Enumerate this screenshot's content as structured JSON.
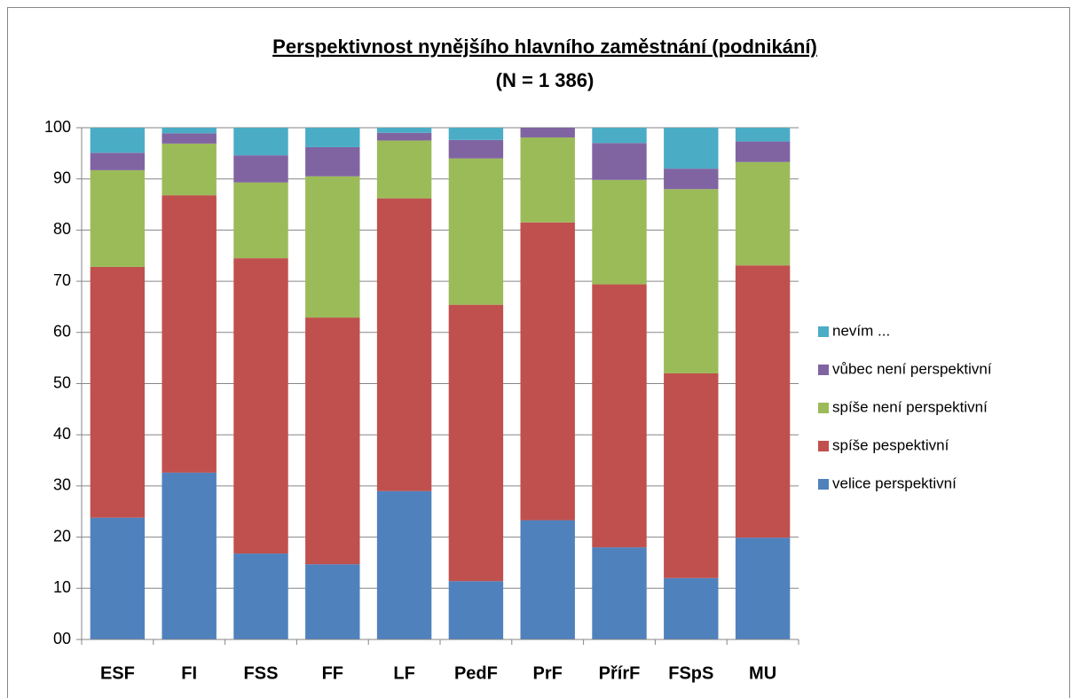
{
  "chart_data": {
    "type": "stacked_bar",
    "title": "Perspektivnost nynějšího hlavního zaměstnání (podnikání)",
    "subtitle": "(N = 1 386)",
    "categories": [
      "ESF",
      "FI",
      "FSS",
      "FF",
      "LF",
      "PedF",
      "PrF",
      "PřírF",
      "FSpS",
      "MU"
    ],
    "series": [
      {
        "name": "velice perspektivní",
        "color": "#4f81bd",
        "values": [
          23.8,
          32.6,
          16.8,
          14.7,
          29.0,
          11.4,
          23.3,
          18.0,
          12.0,
          19.9
        ]
      },
      {
        "name": "spíše pespektivní",
        "color": "#c0504d",
        "values": [
          49.0,
          54.2,
          57.7,
          48.2,
          57.2,
          54.0,
          58.2,
          51.4,
          40.0,
          53.2
        ]
      },
      {
        "name": "spíše není perspektivní",
        "color": "#9bbb59",
        "values": [
          18.9,
          10.1,
          14.8,
          27.6,
          11.3,
          28.6,
          16.6,
          20.4,
          36.0,
          20.2
        ]
      },
      {
        "name": "vůbec není perspektivní",
        "color": "#8064a2",
        "values": [
          3.4,
          2.0,
          5.3,
          5.7,
          1.5,
          3.6,
          1.9,
          7.2,
          4.0,
          4.0
        ]
      },
      {
        "name": "nevím ...",
        "color": "#4bacc6",
        "values": [
          4.9,
          1.1,
          5.4,
          3.8,
          1.0,
          2.4,
          0,
          3.0,
          8.0,
          2.7
        ]
      }
    ],
    "ylim": [
      0,
      100
    ],
    "yticks": [
      {
        "value": 0,
        "label": "00"
      },
      10,
      20,
      30,
      40,
      50,
      60,
      70,
      80,
      90,
      100
    ],
    "grid": true,
    "legend": "right"
  }
}
